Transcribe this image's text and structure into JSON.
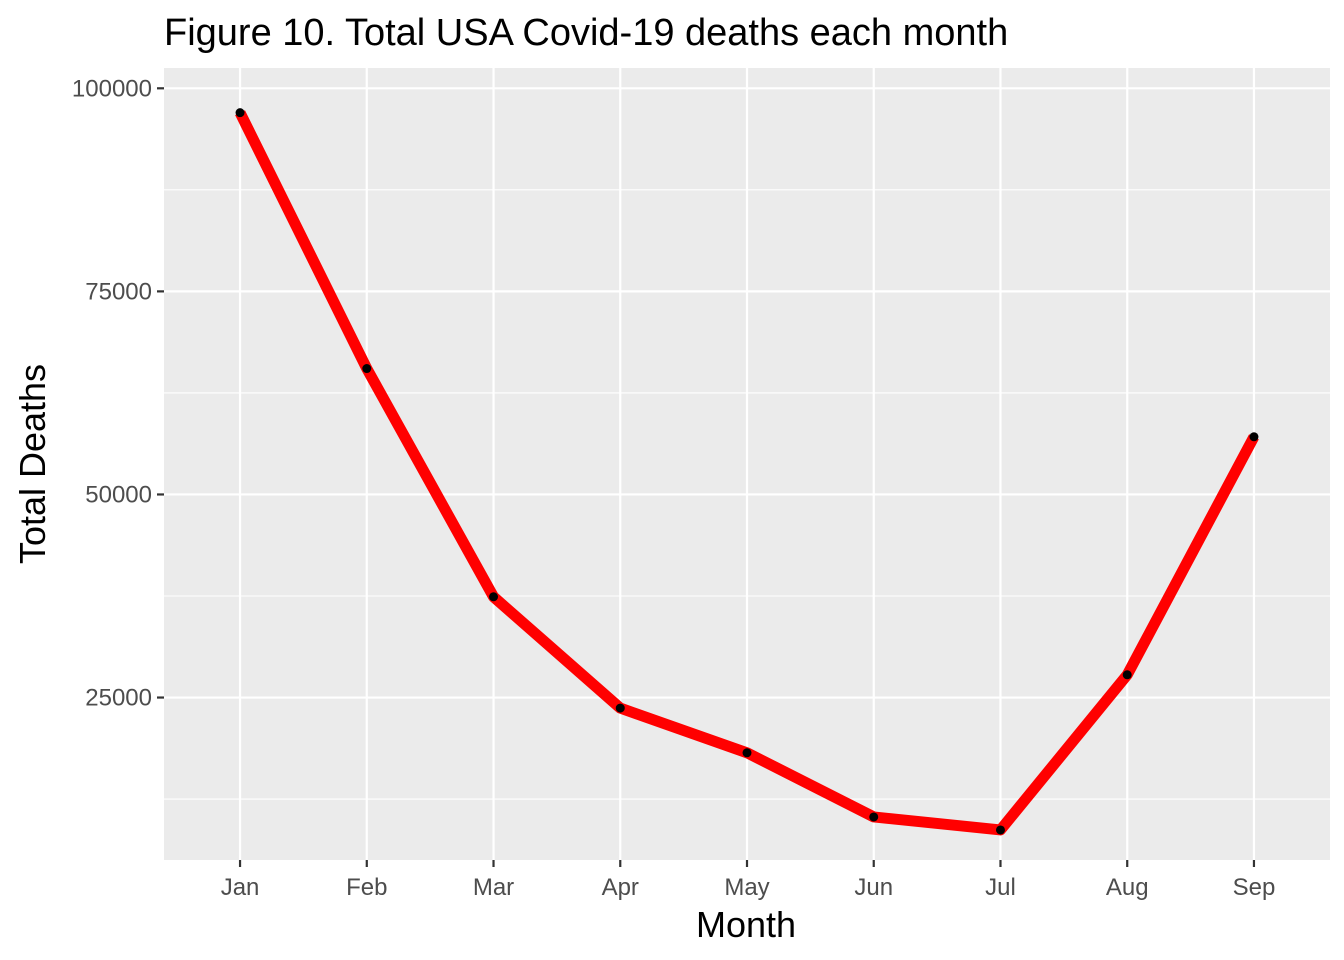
{
  "chart_data": {
    "type": "line",
    "title": "Figure 10. Total USA Covid-19 deaths each month",
    "xlabel": "Month",
    "ylabel": "Total Deaths",
    "categories": [
      "Jan",
      "Feb",
      "Mar",
      "Apr",
      "May",
      "Jun",
      "Jul",
      "Aug",
      "Sep"
    ],
    "series": [
      {
        "values": [
          97000,
          65500,
          37400,
          23700,
          18200,
          10300,
          8700,
          27800,
          57100
        ]
      }
    ],
    "y_ticks": [
      25000,
      50000,
      75000,
      100000
    ],
    "y_tick_labels": [
      "25000",
      "50000",
      "75000",
      "100000"
    ],
    "ylim": [
      5000,
      102500
    ],
    "grid": true,
    "legend": "none",
    "colors": {
      "line": "#ff0000",
      "point": "#000000",
      "panel_background": "#ebebeb",
      "grid": "#ffffff",
      "tick_label": "#4d4d4d"
    }
  }
}
